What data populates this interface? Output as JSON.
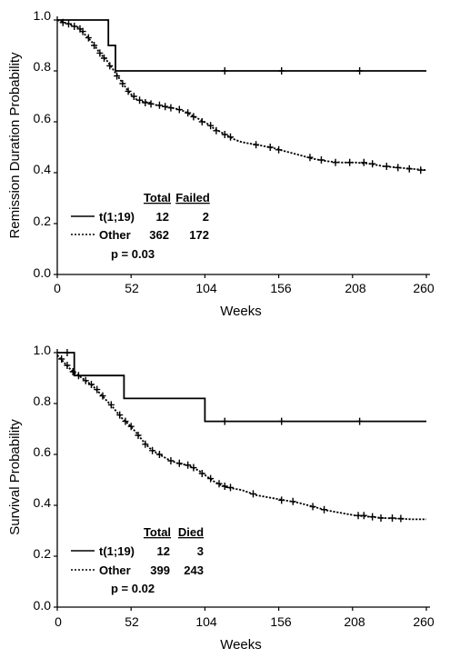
{
  "chart_data": [
    {
      "type": "line",
      "xlabel": "Weeks",
      "ylabel": "Remission Duration Probability",
      "xlim": [
        0,
        260
      ],
      "ylim": [
        0,
        1.0
      ],
      "xticks": [
        "0",
        "52",
        "104",
        "156",
        "208",
        "260"
      ],
      "yticks": [
        "0.0",
        "0.2",
        "0.4",
        "0.6",
        "0.8",
        "1.0"
      ],
      "legend": {
        "col_total": "Total",
        "col_event": "Failed",
        "rows": [
          {
            "name": "t(1;19)",
            "total": "12",
            "event": "2"
          },
          {
            "name": "Other",
            "total": "362",
            "event": "172"
          }
        ],
        "pvalue": "p = 0.03"
      },
      "series": [
        {
          "name": "t(1;19)",
          "style": "solid",
          "step": [
            [
              0,
              1.0
            ],
            [
              36,
              1.0
            ],
            [
              36,
              0.9
            ],
            [
              41,
              0.9
            ],
            [
              41,
              0.8
            ],
            [
              260,
              0.8
            ]
          ],
          "censor": [
            [
              118,
              0.8
            ],
            [
              158,
              0.8
            ],
            [
              213,
              0.8
            ]
          ]
        },
        {
          "name": "Other",
          "style": "dotted",
          "points": [
            [
              0,
              1.0
            ],
            [
              5,
              0.99
            ],
            [
              10,
              0.98
            ],
            [
              15,
              0.97
            ],
            [
              20,
              0.94
            ],
            [
              25,
              0.91
            ],
            [
              30,
              0.87
            ],
            [
              35,
              0.84
            ],
            [
              40,
              0.8
            ],
            [
              45,
              0.76
            ],
            [
              50,
              0.72
            ],
            [
              55,
              0.69
            ],
            [
              60,
              0.68
            ],
            [
              65,
              0.675
            ],
            [
              70,
              0.665
            ],
            [
              75,
              0.66
            ],
            [
              80,
              0.655
            ],
            [
              85,
              0.65
            ],
            [
              90,
              0.64
            ],
            [
              95,
              0.625
            ],
            [
              100,
              0.61
            ],
            [
              105,
              0.595
            ],
            [
              110,
              0.575
            ],
            [
              115,
              0.56
            ],
            [
              120,
              0.545
            ],
            [
              125,
              0.53
            ],
            [
              130,
              0.52
            ],
            [
              140,
              0.51
            ],
            [
              150,
              0.5
            ],
            [
              160,
              0.485
            ],
            [
              170,
              0.47
            ],
            [
              180,
              0.455
            ],
            [
              190,
              0.445
            ],
            [
              200,
              0.44
            ],
            [
              210,
              0.44
            ],
            [
              220,
              0.435
            ],
            [
              230,
              0.425
            ],
            [
              240,
              0.42
            ],
            [
              250,
              0.415
            ],
            [
              260,
              0.41
            ]
          ],
          "censor": [
            [
              4,
              0.99
            ],
            [
              8,
              0.985
            ],
            [
              12,
              0.975
            ],
            [
              16,
              0.965
            ],
            [
              18,
              0.955
            ],
            [
              22,
              0.93
            ],
            [
              26,
              0.9
            ],
            [
              30,
              0.87
            ],
            [
              33,
              0.85
            ],
            [
              37,
              0.82
            ],
            [
              42,
              0.78
            ],
            [
              46,
              0.75
            ],
            [
              50,
              0.72
            ],
            [
              54,
              0.7
            ],
            [
              58,
              0.685
            ],
            [
              62,
              0.675
            ],
            [
              66,
              0.67
            ],
            [
              72,
              0.665
            ],
            [
              76,
              0.66
            ],
            [
              80,
              0.655
            ],
            [
              86,
              0.648
            ],
            [
              92,
              0.635
            ],
            [
              96,
              0.62
            ],
            [
              102,
              0.6
            ],
            [
              108,
              0.585
            ],
            [
              112,
              0.565
            ],
            [
              118,
              0.55
            ],
            [
              122,
              0.54
            ],
            [
              140,
              0.51
            ],
            [
              150,
              0.5
            ],
            [
              156,
              0.49
            ],
            [
              178,
              0.46
            ],
            [
              186,
              0.45
            ],
            [
              196,
              0.44
            ],
            [
              206,
              0.44
            ],
            [
              216,
              0.44
            ],
            [
              222,
              0.435
            ],
            [
              232,
              0.425
            ],
            [
              240,
              0.42
            ],
            [
              248,
              0.415
            ],
            [
              256,
              0.41
            ]
          ]
        }
      ]
    },
    {
      "type": "line",
      "xlabel": "Weeks",
      "ylabel": "Survival Probability",
      "xlim": [
        0,
        260
      ],
      "ylim": [
        0,
        1.0
      ],
      "xticks": [
        "0",
        "52",
        "104",
        "156",
        "208",
        "260"
      ],
      "yticks": [
        "0.0",
        "0.2",
        "0.4",
        "0.6",
        "0.8",
        "1.0"
      ],
      "legend": {
        "col_total": "Total",
        "col_event": "Died",
        "rows": [
          {
            "name": "t(1;19)",
            "total": "12",
            "event": "3"
          },
          {
            "name": "Other",
            "total": "399",
            "event": "243"
          }
        ],
        "pvalue": "p = 0.02"
      },
      "series": [
        {
          "name": "t(1;19)",
          "style": "solid",
          "step": [
            [
              0,
              1.0
            ],
            [
              12,
              1.0
            ],
            [
              12,
              0.91
            ],
            [
              47,
              0.91
            ],
            [
              47,
              0.82
            ],
            [
              104,
              0.82
            ],
            [
              104,
              0.73
            ],
            [
              260,
              0.73
            ]
          ],
          "censor": [
            [
              7,
              1.0
            ],
            [
              118,
              0.73
            ],
            [
              158,
              0.73
            ],
            [
              213,
              0.73
            ]
          ]
        },
        {
          "name": "Other",
          "style": "dotted",
          "points": [
            [
              0,
              0.99
            ],
            [
              5,
              0.96
            ],
            [
              10,
              0.93
            ],
            [
              15,
              0.91
            ],
            [
              20,
              0.89
            ],
            [
              25,
              0.87
            ],
            [
              30,
              0.84
            ],
            [
              35,
              0.81
            ],
            [
              40,
              0.78
            ],
            [
              45,
              0.745
            ],
            [
              50,
              0.72
            ],
            [
              55,
              0.69
            ],
            [
              60,
              0.655
            ],
            [
              65,
              0.625
            ],
            [
              70,
              0.605
            ],
            [
              75,
              0.59
            ],
            [
              80,
              0.575
            ],
            [
              85,
              0.565
            ],
            [
              90,
              0.56
            ],
            [
              95,
              0.55
            ],
            [
              100,
              0.535
            ],
            [
              105,
              0.515
            ],
            [
              110,
              0.495
            ],
            [
              115,
              0.48
            ],
            [
              120,
              0.47
            ],
            [
              130,
              0.46
            ],
            [
              140,
              0.44
            ],
            [
              150,
              0.43
            ],
            [
              160,
              0.42
            ],
            [
              170,
              0.41
            ],
            [
              180,
              0.395
            ],
            [
              190,
              0.38
            ],
            [
              200,
              0.37
            ],
            [
              210,
              0.36
            ],
            [
              220,
              0.355
            ],
            [
              230,
              0.35
            ],
            [
              240,
              0.348
            ],
            [
              250,
              0.345
            ],
            [
              260,
              0.345
            ]
          ],
          "censor": [
            [
              3,
              0.975
            ],
            [
              7,
              0.95
            ],
            [
              11,
              0.925
            ],
            [
              15,
              0.91
            ],
            [
              20,
              0.89
            ],
            [
              24,
              0.875
            ],
            [
              28,
              0.855
            ],
            [
              32,
              0.83
            ],
            [
              38,
              0.795
            ],
            [
              44,
              0.755
            ],
            [
              48,
              0.73
            ],
            [
              52,
              0.71
            ],
            [
              57,
              0.675
            ],
            [
              62,
              0.64
            ],
            [
              67,
              0.615
            ],
            [
              72,
              0.6
            ],
            [
              80,
              0.575
            ],
            [
              86,
              0.565
            ],
            [
              92,
              0.558
            ],
            [
              96,
              0.548
            ],
            [
              102,
              0.525
            ],
            [
              108,
              0.505
            ],
            [
              114,
              0.485
            ],
            [
              118,
              0.475
            ],
            [
              122,
              0.47
            ],
            [
              138,
              0.445
            ],
            [
              158,
              0.42
            ],
            [
              166,
              0.415
            ],
            [
              180,
              0.395
            ],
            [
              188,
              0.383
            ],
            [
              212,
              0.36
            ],
            [
              216,
              0.36
            ],
            [
              222,
              0.355
            ],
            [
              228,
              0.35
            ],
            [
              236,
              0.35
            ],
            [
              242,
              0.348
            ]
          ]
        }
      ]
    }
  ]
}
